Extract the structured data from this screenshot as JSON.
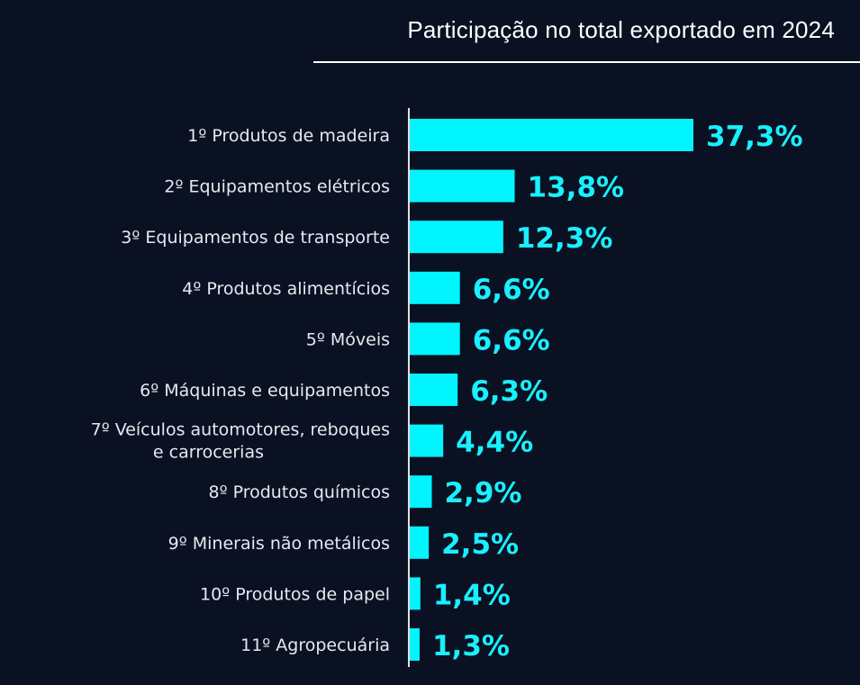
{
  "chart_data": {
    "type": "bar",
    "orientation": "horizontal",
    "title": "Participação no total exportado em 2024",
    "categories": [
      "1º Produtos de madeira",
      "2º Equipamentos elétricos",
      "3º Equipamentos de transporte",
      "4º Produtos alimentícios",
      "5º Móveis",
      "6º Máquinas e equipamentos",
      "7º Veículos automotores, reboques e carrocerias",
      "8º Produtos químicos",
      "9º Minerais não metálicos",
      "10º Produtos de papel",
      "11º Agropecuária"
    ],
    "values": [
      37.3,
      13.8,
      12.3,
      6.6,
      6.6,
      6.3,
      4.4,
      2.9,
      2.5,
      1.4,
      1.3
    ],
    "value_labels": [
      "37,3%",
      "13,8%",
      "12,3%",
      "6,6%",
      "6,6%",
      "6,3%",
      "4,4%",
      "2,9%",
      "2,5%",
      "1,4%",
      "1,3%"
    ],
    "xlabel": "",
    "ylabel": "",
    "grid": false,
    "legend": "none",
    "bar_color": "#00f5ff",
    "label_color": "#19f0ff",
    "background_color": "#0a1122"
  }
}
